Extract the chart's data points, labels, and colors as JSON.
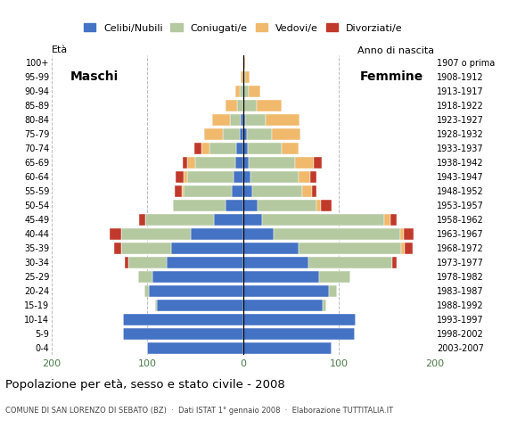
{
  "age_groups": [
    "0-4",
    "5-9",
    "10-14",
    "15-19",
    "20-24",
    "25-29",
    "30-34",
    "35-39",
    "40-44",
    "45-49",
    "50-54",
    "55-59",
    "60-64",
    "65-69",
    "70-74",
    "75-79",
    "80-84",
    "85-89",
    "90-94",
    "95-99",
    "100+"
  ],
  "birth_years": [
    "2003-2007",
    "1998-2002",
    "1993-1997",
    "1988-1992",
    "1983-1987",
    "1978-1982",
    "1973-1977",
    "1968-1972",
    "1963-1967",
    "1958-1962",
    "1953-1957",
    "1948-1952",
    "1943-1947",
    "1938-1942",
    "1933-1937",
    "1928-1932",
    "1923-1927",
    "1918-1922",
    "1913-1917",
    "1908-1912",
    "1907 o prima"
  ],
  "colors": {
    "celibi": "#4472c4",
    "coniugati": "#b5c9a0",
    "vedovi": "#f0b96c",
    "divorziati": "#c0392b"
  },
  "males": {
    "celibi": [
      100,
      125,
      125,
      90,
      98,
      95,
      80,
      75,
      55,
      30,
      18,
      12,
      10,
      8,
      7,
      3,
      2,
      0,
      0,
      0,
      0
    ],
    "coniugati": [
      0,
      0,
      0,
      2,
      5,
      15,
      40,
      52,
      72,
      72,
      55,
      50,
      48,
      42,
      28,
      18,
      12,
      6,
      3,
      0,
      0
    ],
    "vedovi": [
      0,
      0,
      0,
      0,
      0,
      0,
      0,
      0,
      0,
      0,
      0,
      2,
      4,
      8,
      8,
      20,
      18,
      12,
      5,
      2,
      0
    ],
    "divorziati": [
      0,
      0,
      0,
      0,
      0,
      0,
      4,
      8,
      12,
      7,
      0,
      7,
      8,
      5,
      8,
      0,
      0,
      0,
      0,
      0,
      0
    ]
  },
  "females": {
    "celibi": [
      93,
      117,
      118,
      83,
      90,
      80,
      68,
      58,
      32,
      20,
      15,
      10,
      8,
      6,
      5,
      4,
      2,
      0,
      0,
      0,
      0
    ],
    "coniugati": [
      0,
      0,
      0,
      4,
      8,
      32,
      88,
      107,
      132,
      128,
      62,
      52,
      50,
      48,
      35,
      26,
      22,
      14,
      6,
      2,
      0
    ],
    "vedovi": [
      0,
      0,
      0,
      0,
      0,
      0,
      0,
      4,
      4,
      6,
      4,
      10,
      12,
      20,
      18,
      30,
      35,
      26,
      12,
      5,
      2
    ],
    "divorziati": [
      0,
      0,
      0,
      0,
      0,
      0,
      5,
      8,
      10,
      7,
      12,
      5,
      7,
      8,
      0,
      0,
      0,
      0,
      0,
      0,
      0
    ]
  },
  "title": "Popolazione per età, sesso e stato civile - 2008",
  "subtitle": "COMUNE DI SAN LORENZO DI SEBATO (BZ)  ·  Dati ISTAT 1° gennaio 2008  ·  Elaborazione TUTTITALIA.IT",
  "xlabel_left": "Maschi",
  "xlabel_right": "Femmine",
  "ylabel_left": "Età",
  "ylabel_right": "Anno di nascita",
  "xlim": 200,
  "legend_labels": [
    "Celibi/Nubili",
    "Coniugati/e",
    "Vedovi/e",
    "Divorziati/e"
  ],
  "bg_color": "#ffffff",
  "bar_height": 0.85,
  "grid_color": "#cccccc"
}
